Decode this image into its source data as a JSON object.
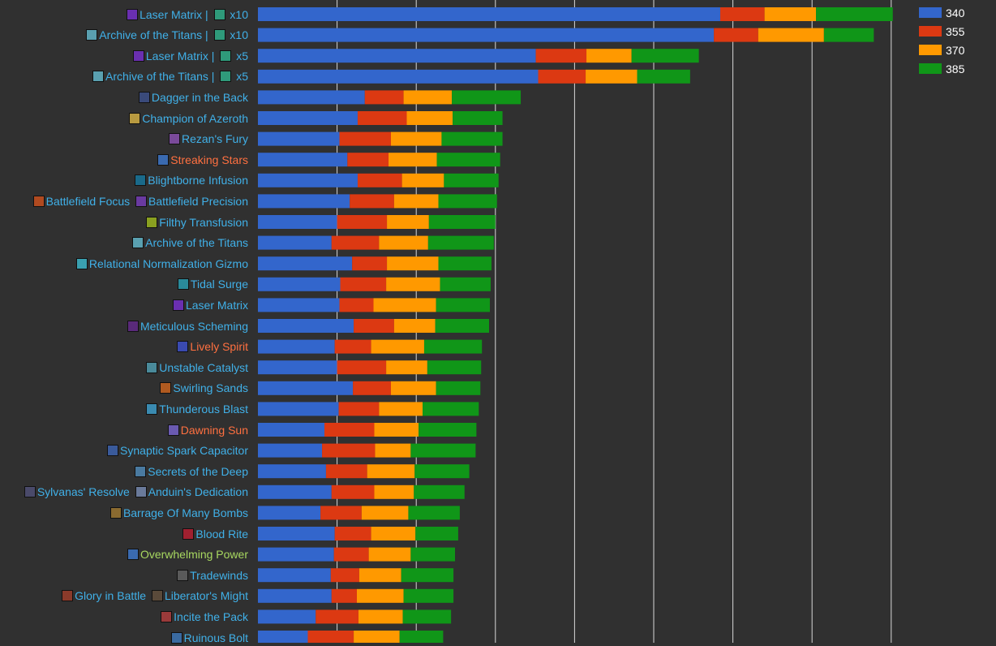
{
  "chart_data": {
    "type": "bar",
    "orientation": "horizontal",
    "stacked": true,
    "grid": true,
    "legend_position": "top-right",
    "categories": [
      "Laser Matrix | x10",
      "Archive of the Titans | x10",
      "Laser Matrix | x5",
      "Archive of the Titans | x5",
      "Dagger in the Back",
      "Champion of Azeroth",
      "Rezan's Fury",
      "Streaking Stars",
      "Blightborne Infusion",
      "Battlefield Focus Battlefield Precision",
      "Filthy Transfusion",
      "Archive of the Titans",
      "Relational Normalization Gizmo",
      "Tidal Surge",
      "Laser Matrix",
      "Meticulous Scheming",
      "Lively Spirit",
      "Unstable Catalyst",
      "Swirling Sands",
      "Thunderous Blast",
      "Dawning Sun",
      "Synaptic Spark Capacitor",
      "Secrets of the Deep",
      "Sylvanas' Resolve Anduin's Dedication",
      "Barrage Of Many Bombs",
      "Blood Rite",
      "Overwhelming Power",
      "Tradewinds",
      "Glory in Battle Liberator's Might",
      "Incite the Pack",
      "Ruinous Bolt"
    ],
    "series": [
      {
        "name": "340",
        "color": "#3366cc",
        "values": [
          584,
          576,
          351,
          354,
          135,
          126,
          103,
          113,
          126,
          116,
          100,
          93,
          119,
          104,
          103,
          121,
          97,
          100,
          120,
          102,
          84,
          81,
          86,
          93,
          79,
          97,
          96,
          92,
          93,
          73,
          63
        ]
      },
      {
        "name": "355",
        "color": "#dc3912",
        "values": [
          56,
          56,
          64,
          60,
          49,
          62,
          65,
          52,
          56,
          56,
          63,
          60,
          44,
          58,
          43,
          51,
          46,
          62,
          48,
          51,
          63,
          67,
          52,
          54,
          52,
          46,
          44,
          36,
          32,
          54,
          58
        ]
      },
      {
        "name": "370",
        "color": "#ff9900",
        "values": [
          65,
          83,
          57,
          65,
          61,
          58,
          64,
          61,
          53,
          56,
          53,
          62,
          65,
          68,
          79,
          52,
          67,
          52,
          57,
          55,
          56,
          45,
          60,
          50,
          59,
          56,
          53,
          53,
          59,
          56,
          58
        ]
      },
      {
        "name": "385",
        "color": "#109618",
        "values": [
          97,
          63,
          85,
          67,
          87,
          63,
          77,
          80,
          69,
          74,
          84,
          83,
          67,
          64,
          68,
          68,
          73,
          68,
          56,
          71,
          73,
          82,
          69,
          64,
          65,
          54,
          56,
          66,
          63,
          61,
          55
        ]
      }
    ],
    "xlim": [
      0,
      800
    ],
    "xgrid": [
      100,
      200,
      300,
      400,
      500,
      600,
      700,
      800
    ],
    "label_parts": [
      [
        {
          "icon": "#6a2fb0",
          "text": "Laser Matrix | "
        },
        {
          "icon": "#2f9a7a",
          "text": " x10"
        }
      ],
      [
        {
          "icon": "#5aa0b0",
          "text": "Archive of the Titans | "
        },
        {
          "icon": "#2f9a7a",
          "text": " x10"
        }
      ],
      [
        {
          "icon": "#6a2fb0",
          "text": "Laser Matrix | "
        },
        {
          "icon": "#2f9a7a",
          "text": " x5"
        }
      ],
      [
        {
          "icon": "#5aa0b0",
          "text": "Archive of the Titans | "
        },
        {
          "icon": "#2f9a7a",
          "text": " x5"
        }
      ],
      [
        {
          "icon": "#3a4a7a",
          "text": "Dagger in the Back"
        }
      ],
      [
        {
          "icon": "#b89a40",
          "text": "Champion of Azeroth"
        }
      ],
      [
        {
          "icon": "#7a4a9a",
          "text": "Rezan's Fury"
        }
      ],
      [
        {
          "icon": "#3a6ab0",
          "text": "Streaking Stars",
          "color": "#ff7040"
        }
      ],
      [
        {
          "icon": "#1a6a8a",
          "text": "Blightborne Infusion"
        }
      ],
      [
        {
          "icon": "#b04a20",
          "text": "Battlefield Focus "
        },
        {
          "icon": "#6a3aa0",
          "text": "Battlefield Precision"
        }
      ],
      [
        {
          "icon": "#8aa020",
          "text": "Filthy Transfusion"
        }
      ],
      [
        {
          "icon": "#5aa0b0",
          "text": "Archive of the Titans"
        }
      ],
      [
        {
          "icon": "#3aa0b0",
          "text": "Relational Normalization Gizmo"
        }
      ],
      [
        {
          "icon": "#2a8a9a",
          "text": "Tidal Surge"
        }
      ],
      [
        {
          "icon": "#6a2fb0",
          "text": "Laser Matrix"
        }
      ],
      [
        {
          "icon": "#5a2a7a",
          "text": "Meticulous Scheming"
        }
      ],
      [
        {
          "icon": "#3a4ab0",
          "text": "Lively Spirit",
          "color": "#ff7040"
        }
      ],
      [
        {
          "icon": "#4a8a9a",
          "text": "Unstable Catalyst"
        }
      ],
      [
        {
          "icon": "#b05a20",
          "text": "Swirling Sands"
        }
      ],
      [
        {
          "icon": "#3a8ab0",
          "text": "Thunderous Blast"
        }
      ],
      [
        {
          "icon": "#6a5ab0",
          "text": "Dawning Sun",
          "color": "#ff7040"
        }
      ],
      [
        {
          "icon": "#3a5a9a",
          "text": "Synaptic Spark Capacitor"
        }
      ],
      [
        {
          "icon": "#4a7aa0",
          "text": "Secrets of the Deep"
        }
      ],
      [
        {
          "icon": "#4a4a6a",
          "text": "Sylvanas' Resolve "
        },
        {
          "icon": "#6a7a9a",
          "text": "Anduin's Dedication"
        }
      ],
      [
        {
          "icon": "#8a6a30",
          "text": "Barrage Of Many Bombs"
        }
      ],
      [
        {
          "icon": "#a02030",
          "text": "Blood Rite"
        }
      ],
      [
        {
          "icon": "#3a6ab0",
          "text": "Overwhelming Power",
          "color": "#a8d860"
        }
      ],
      [
        {
          "icon": "#5a5a5a",
          "text": "Tradewinds"
        }
      ],
      [
        {
          "icon": "#8a3a2a",
          "text": "Glory in Battle "
        },
        {
          "icon": "#5a4a3a",
          "text": "Liberator's Might"
        }
      ],
      [
        {
          "icon": "#9a3a3a",
          "text": "Incite the Pack"
        }
      ],
      [
        {
          "icon": "#3a6aa0",
          "text": "Ruinous Bolt"
        }
      ]
    ],
    "default_label_color": "#40b0e8",
    "grid_color": "#d8d8d8"
  }
}
